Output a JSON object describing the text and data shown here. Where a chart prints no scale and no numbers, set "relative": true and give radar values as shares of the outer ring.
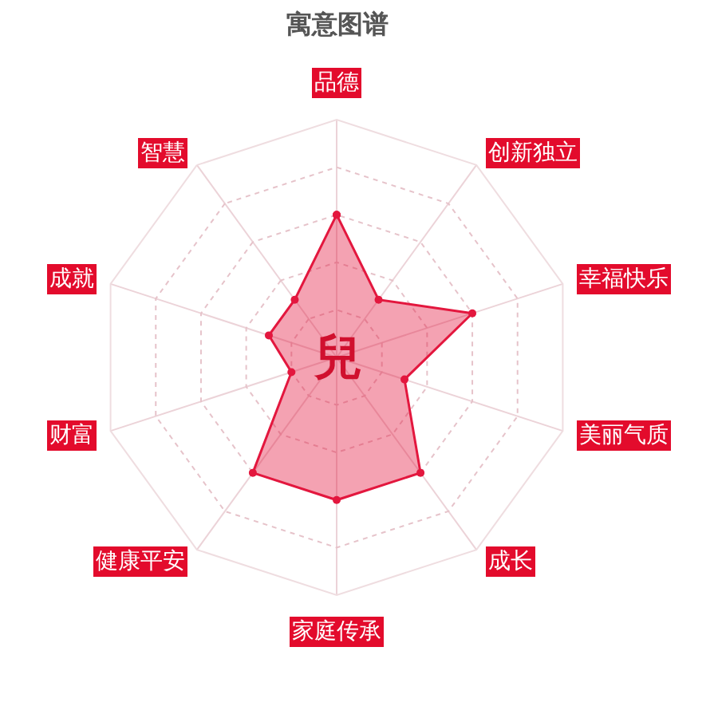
{
  "chart_data": {
    "type": "radar",
    "title": "寓意图谱",
    "categories": [
      "品德",
      "创新独立",
      "幸福快乐",
      "美丽气质",
      "成长",
      "家庭传承",
      "健康平安",
      "财富",
      "成就",
      "智慧"
    ],
    "relative": true,
    "series": [
      {
        "color": "#e3173e",
        "values": [
          0.6,
          0.3,
          0.6,
          0.3,
          0.6,
          0.6,
          0.6,
          0.2,
          0.3,
          0.3
        ]
      }
    ],
    "annotations": [
      "兒"
    ],
    "marker": "circle",
    "grid": true
  }
}
